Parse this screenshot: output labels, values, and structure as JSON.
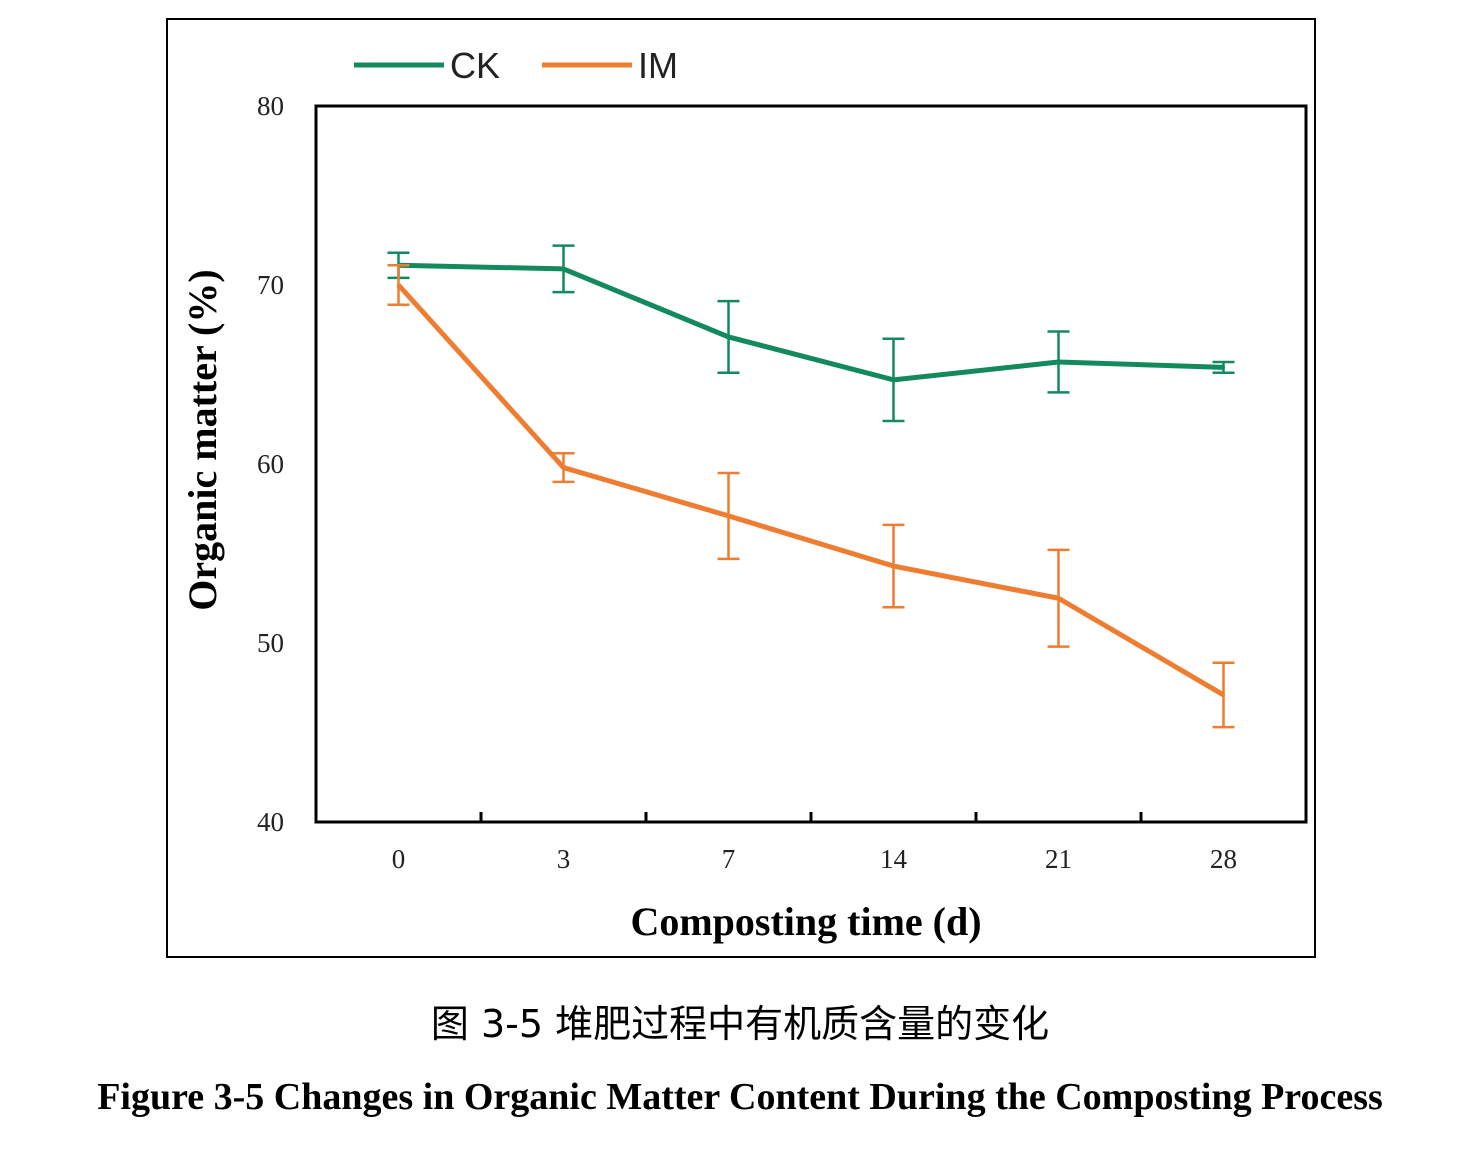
{
  "chart_data": {
    "type": "line",
    "xlabel": "Composting time (d)",
    "ylabel": "Organic matter (%)",
    "ylim": [
      40,
      80
    ],
    "yticks": [
      40,
      50,
      60,
      70,
      80
    ],
    "categories": [
      "0",
      "3",
      "7",
      "14",
      "21",
      "28"
    ],
    "legend_position": "top",
    "grid": false,
    "series": [
      {
        "name": "CK",
        "color": "#138a5e",
        "values": [
          71.1,
          70.9,
          67.1,
          64.7,
          65.7,
          65.4
        ],
        "errors": [
          0.7,
          1.3,
          2.0,
          2.3,
          1.7,
          0.3
        ]
      },
      {
        "name": "IM",
        "color": "#ee7d31",
        "values": [
          70.0,
          59.8,
          57.1,
          54.3,
          52.5,
          47.1
        ],
        "errors": [
          1.1,
          0.8,
          2.4,
          2.3,
          2.7,
          1.8
        ]
      }
    ]
  },
  "caption": {
    "cn": "图 3-5  堆肥过程中有机质含量的变化",
    "en": "Figure 3-5 Changes in Organic Matter Content During the Composting Process"
  }
}
